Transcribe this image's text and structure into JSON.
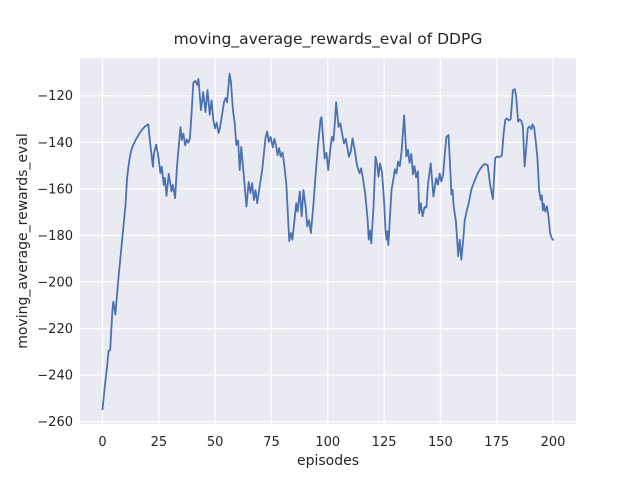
{
  "chart_data": {
    "type": "line",
    "title": "moving_average_rewards_eval of DDPG",
    "xlabel": "episodes",
    "ylabel": "moving_average_rewards_eval",
    "xlim": [
      -10,
      210.2
    ],
    "ylim": [
      -261,
      -103.8
    ],
    "xticks": [
      0,
      25,
      50,
      75,
      100,
      125,
      150,
      175,
      200
    ],
    "yticks": [
      -120,
      -140,
      -160,
      -180,
      -200,
      -220,
      -240,
      -260
    ],
    "grid": true,
    "legend_position": "none",
    "style": {
      "figure_bg": "#ffffff",
      "axes_bg": "#eaeaf2",
      "grid_color": "#ffffff",
      "line_color": "#4c72b0",
      "text_color": "#262626"
    },
    "series": [
      {
        "name": "moving_average_rewards_eval",
        "points": [
          [
            0,
            -254.7
          ],
          [
            1,
            -245
          ],
          [
            2,
            -236.5
          ],
          [
            2.7,
            -229.5
          ],
          [
            3.4,
            -229.3
          ],
          [
            4.4,
            -212
          ],
          [
            4.8,
            -208.5
          ],
          [
            5.7,
            -214
          ],
          [
            6.3,
            -207
          ],
          [
            7,
            -199
          ],
          [
            8,
            -189
          ],
          [
            9,
            -179
          ],
          [
            10.2,
            -167
          ],
          [
            10.9,
            -155.5
          ],
          [
            11.7,
            -149
          ],
          [
            12.4,
            -145
          ],
          [
            13.2,
            -142
          ],
          [
            14,
            -140.5
          ],
          [
            14.7,
            -139
          ],
          [
            16.2,
            -136.5
          ],
          [
            17.6,
            -134.5
          ],
          [
            19.1,
            -133
          ],
          [
            20.3,
            -132.3
          ],
          [
            20.9,
            -138
          ],
          [
            21.4,
            -142.5
          ],
          [
            22.4,
            -150.5
          ],
          [
            22.8,
            -145
          ],
          [
            23.8,
            -141
          ],
          [
            24.7,
            -145.5
          ],
          [
            25.7,
            -153.3
          ],
          [
            26.3,
            -150.5
          ],
          [
            27.2,
            -158.3
          ],
          [
            27.7,
            -155.3
          ],
          [
            28.4,
            -163
          ],
          [
            29.4,
            -153.5
          ],
          [
            30.6,
            -161
          ],
          [
            31.2,
            -158.3
          ],
          [
            32.2,
            -164
          ],
          [
            33.1,
            -150
          ],
          [
            34,
            -140
          ],
          [
            34.6,
            -133.5
          ],
          [
            35.2,
            -139
          ],
          [
            35.9,
            -136.3
          ],
          [
            36.7,
            -141.3
          ],
          [
            37.4,
            -138.8
          ],
          [
            38.1,
            -140.2
          ],
          [
            38.8,
            -138.3
          ],
          [
            39.5,
            -128
          ],
          [
            40.3,
            -114.5
          ],
          [
            41.2,
            -113.6
          ],
          [
            42.1,
            -115.5
          ],
          [
            42.6,
            -112.8
          ],
          [
            43.7,
            -126.2
          ],
          [
            44.7,
            -118.4
          ],
          [
            45.7,
            -127
          ],
          [
            46.6,
            -117.5
          ],
          [
            47.6,
            -128.2
          ],
          [
            48.4,
            -122
          ],
          [
            49.2,
            -130.5
          ],
          [
            50,
            -134
          ],
          [
            50.7,
            -131.5
          ],
          [
            51.5,
            -136
          ],
          [
            52.2,
            -133.5
          ],
          [
            53.1,
            -128
          ],
          [
            54,
            -122.5
          ],
          [
            54.7,
            -121
          ],
          [
            55.3,
            -122.8
          ],
          [
            56.4,
            -110.5
          ],
          [
            57,
            -114
          ],
          [
            57.9,
            -126.2
          ],
          [
            58.7,
            -131.8
          ],
          [
            59.4,
            -141.2
          ],
          [
            60.2,
            -139.2
          ],
          [
            60.9,
            -152
          ],
          [
            61.6,
            -142
          ],
          [
            62.7,
            -154
          ],
          [
            63.9,
            -167.6
          ],
          [
            64.9,
            -157
          ],
          [
            65.7,
            -161.8
          ],
          [
            66.4,
            -157.6
          ],
          [
            67.2,
            -164.8
          ],
          [
            67.9,
            -160.5
          ],
          [
            68.7,
            -166.2
          ],
          [
            69.4,
            -161.2
          ],
          [
            70.9,
            -151.8
          ],
          [
            72.4,
            -137.8
          ],
          [
            73.1,
            -135.4
          ],
          [
            73.8,
            -139.8
          ],
          [
            74.6,
            -137.7
          ],
          [
            75.6,
            -142.2
          ],
          [
            76.3,
            -138.5
          ],
          [
            77,
            -141.2
          ],
          [
            77.7,
            -145.5
          ],
          [
            78.4,
            -142.5
          ],
          [
            79.1,
            -146.2
          ],
          [
            79.9,
            -144.3
          ],
          [
            80.6,
            -149
          ],
          [
            81.6,
            -158
          ],
          [
            82.9,
            -182.5
          ],
          [
            83.6,
            -179
          ],
          [
            84.3,
            -181.8
          ],
          [
            86,
            -166.2
          ],
          [
            86.6,
            -169.8
          ],
          [
            87.6,
            -161.2
          ],
          [
            88.4,
            -171.8
          ],
          [
            89.2,
            -160.5
          ],
          [
            90.2,
            -168
          ],
          [
            90.9,
            -176.2
          ],
          [
            91.7,
            -173.5
          ],
          [
            92.5,
            -179
          ],
          [
            93.6,
            -167
          ],
          [
            94.6,
            -154
          ],
          [
            95.6,
            -142
          ],
          [
            96.8,
            -130
          ],
          [
            97.2,
            -129.2
          ],
          [
            98.6,
            -146.9
          ],
          [
            99.4,
            -144.5
          ],
          [
            100.2,
            -151.9
          ],
          [
            101,
            -144
          ],
          [
            101.8,
            -137.7
          ],
          [
            102.5,
            -139.4
          ],
          [
            103.2,
            -131
          ],
          [
            103.7,
            -122.8
          ],
          [
            104.8,
            -133.4
          ],
          [
            105.6,
            -131.9
          ],
          [
            106.3,
            -136
          ],
          [
            107.2,
            -140.5
          ],
          [
            108,
            -138.5
          ],
          [
            109.4,
            -146.2
          ],
          [
            110.2,
            -144
          ],
          [
            111,
            -138.3
          ],
          [
            112,
            -143.5
          ],
          [
            113,
            -150
          ],
          [
            114.1,
            -153.3
          ],
          [
            114.8,
            -151.2
          ],
          [
            115.6,
            -155.5
          ],
          [
            116.6,
            -162
          ],
          [
            117.7,
            -173.3
          ],
          [
            118.2,
            -181.8
          ],
          [
            118.7,
            -177.8
          ],
          [
            119.3,
            -183.4
          ],
          [
            120.3,
            -168
          ],
          [
            121.2,
            -146.2
          ],
          [
            121.9,
            -149.5
          ],
          [
            122.5,
            -154.8
          ],
          [
            123.2,
            -149.1
          ],
          [
            124.1,
            -153
          ],
          [
            125.1,
            -167
          ],
          [
            125.6,
            -177.5
          ],
          [
            126.1,
            -181.8
          ],
          [
            126.5,
            -178.3
          ],
          [
            126.9,
            -184.1
          ],
          [
            128.3,
            -160.5
          ],
          [
            129.1,
            -156
          ],
          [
            129.8,
            -151.6
          ],
          [
            130.5,
            -153.4
          ],
          [
            131.2,
            -148.3
          ],
          [
            132,
            -150.2
          ],
          [
            132.8,
            -143.5
          ],
          [
            133.9,
            -128.4
          ],
          [
            134.9,
            -146.1
          ],
          [
            135.6,
            -143.2
          ],
          [
            136.3,
            -148.8
          ],
          [
            137.1,
            -145
          ],
          [
            137.8,
            -153.8
          ],
          [
            138.5,
            -150.2
          ],
          [
            139.2,
            -155.1
          ],
          [
            140,
            -152.5
          ],
          [
            140.6,
            -170.4
          ],
          [
            141.3,
            -166.2
          ],
          [
            142.1,
            -171.8
          ],
          [
            143,
            -167.8
          ],
          [
            143.8,
            -168
          ],
          [
            144.5,
            -158
          ],
          [
            145.7,
            -149
          ],
          [
            146.9,
            -163.3
          ],
          [
            148.1,
            -155.4
          ],
          [
            148.9,
            -158.2
          ],
          [
            149.7,
            -153.4
          ],
          [
            150.4,
            -156.8
          ],
          [
            151.2,
            -154
          ],
          [
            152.1,
            -143.5
          ],
          [
            152.7,
            -137.6
          ],
          [
            153.6,
            -136.9
          ],
          [
            154.4,
            -151.8
          ],
          [
            154.9,
            -162.5
          ],
          [
            155.4,
            -160.4
          ],
          [
            155.9,
            -167.6
          ],
          [
            156.9,
            -174
          ],
          [
            157.9,
            -188.9
          ],
          [
            158.6,
            -181.8
          ],
          [
            159.3,
            -190.4
          ],
          [
            160.3,
            -180
          ],
          [
            160.8,
            -173.4
          ],
          [
            161.7,
            -169.5
          ],
          [
            162.6,
            -166
          ],
          [
            163.7,
            -160.4
          ],
          [
            165,
            -157
          ],
          [
            166.5,
            -153.4
          ],
          [
            168,
            -151
          ],
          [
            169.5,
            -149.3
          ],
          [
            171,
            -149.8
          ],
          [
            172.1,
            -158.4
          ],
          [
            173.3,
            -164.4
          ],
          [
            174.3,
            -146.9
          ],
          [
            175.1,
            -146.1
          ],
          [
            176.2,
            -146.4
          ],
          [
            177.3,
            -145.7
          ],
          [
            178.1,
            -136
          ],
          [
            178.8,
            -130.4
          ],
          [
            179.5,
            -129.7
          ],
          [
            180.4,
            -130.6
          ],
          [
            181.2,
            -130
          ],
          [
            182.2,
            -117.6
          ],
          [
            183,
            -117.2
          ],
          [
            183.6,
            -120
          ],
          [
            184.1,
            -126.1
          ],
          [
            184.5,
            -131.1
          ],
          [
            185.2,
            -130.2
          ],
          [
            185.9,
            -130.8
          ],
          [
            186.6,
            -133
          ],
          [
            187.4,
            -150.4
          ],
          [
            188.3,
            -140
          ],
          [
            188.8,
            -134
          ],
          [
            189.6,
            -133.2
          ],
          [
            190.4,
            -134.4
          ],
          [
            190.9,
            -132.3
          ],
          [
            191.6,
            -133.5
          ],
          [
            192.3,
            -139.3
          ],
          [
            193.1,
            -147
          ],
          [
            193.8,
            -160.4
          ],
          [
            194.5,
            -164.7
          ],
          [
            195,
            -162.8
          ],
          [
            195.5,
            -169.3
          ],
          [
            195.9,
            -166.4
          ],
          [
            196.6,
            -169.8
          ],
          [
            197.3,
            -167.5
          ],
          [
            198,
            -172
          ],
          [
            198.7,
            -179
          ],
          [
            199.4,
            -181.1
          ],
          [
            200,
            -181.9
          ]
        ]
      }
    ]
  }
}
